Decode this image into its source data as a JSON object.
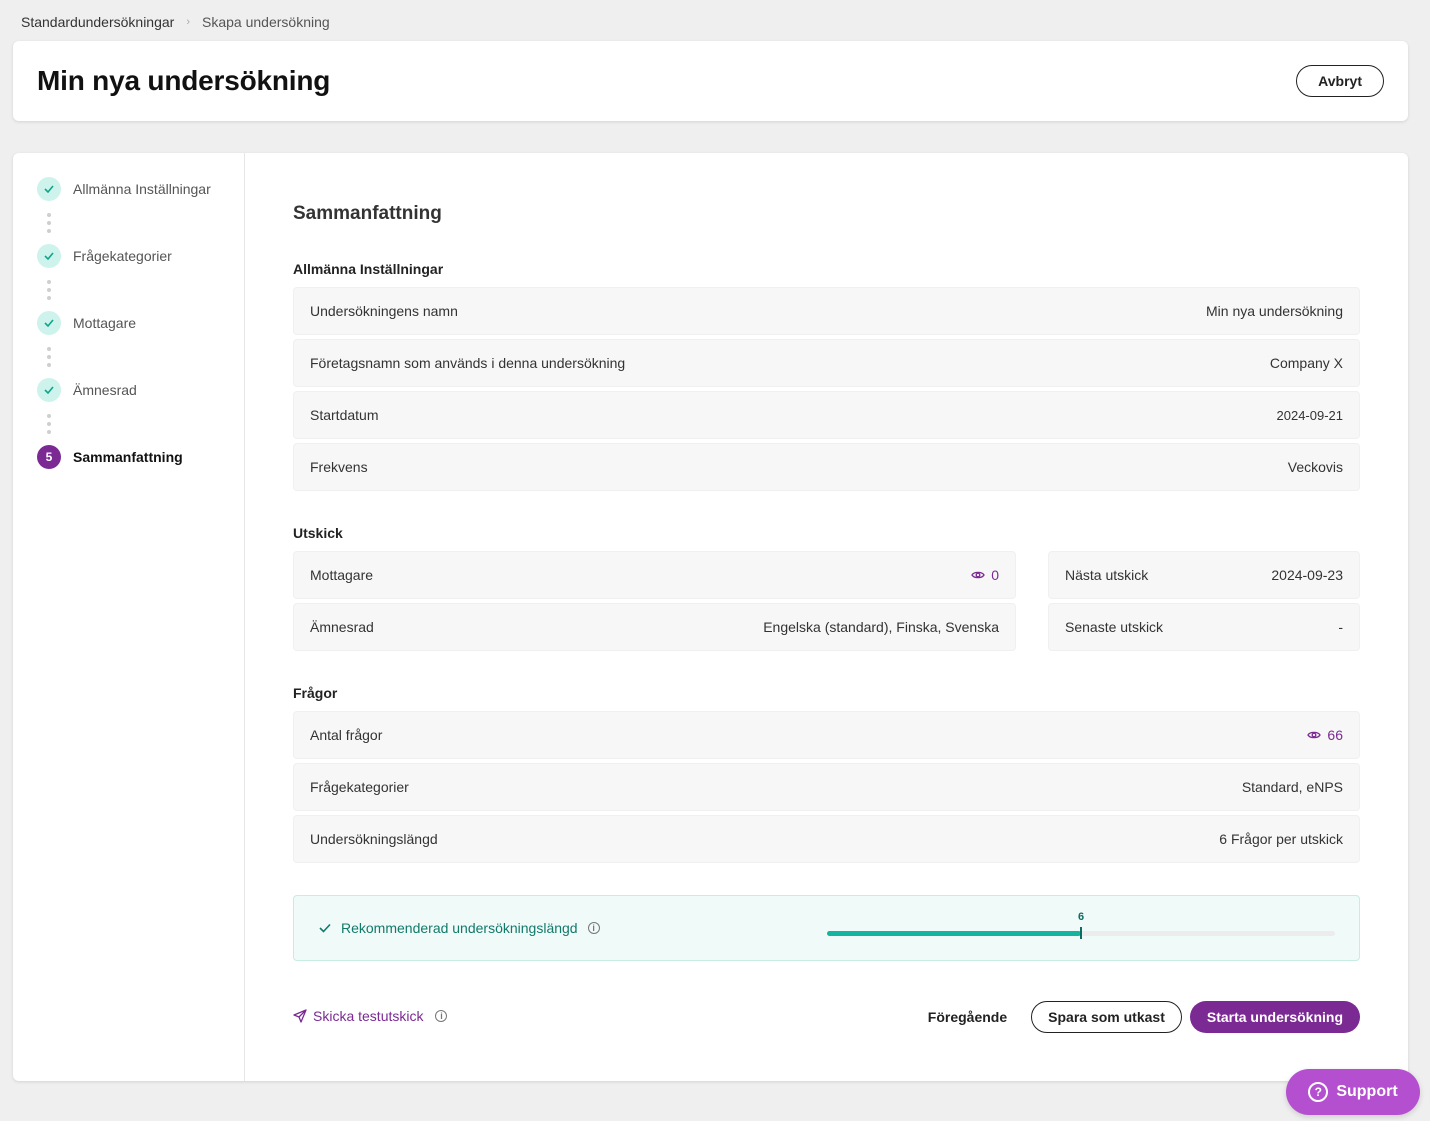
{
  "breadcrumb": {
    "items": [
      "Standardundersökningar",
      "Skapa undersökning"
    ]
  },
  "header": {
    "title": "Min nya undersökning",
    "cancel_label": "Avbryt"
  },
  "sidebar": {
    "steps": [
      {
        "label": "Allmänna Inställningar",
        "state": "done"
      },
      {
        "label": "Frågekategorier",
        "state": "done"
      },
      {
        "label": "Mottagare",
        "state": "done"
      },
      {
        "label": "Ämnesrad",
        "state": "done"
      },
      {
        "label": "Sammanfattning",
        "state": "active",
        "number": "5"
      }
    ]
  },
  "summary": {
    "title": "Sammanfattning",
    "general": {
      "title": "Allmänna Inställningar",
      "rows": [
        {
          "label": "Undersökningens namn",
          "value": "Min nya undersökning"
        },
        {
          "label": "Företagsnamn som används i denna undersökning",
          "value": "Company X"
        },
        {
          "label": "Startdatum",
          "value": "2024-09-21"
        },
        {
          "label": "Frekvens",
          "value": "Veckovis"
        }
      ]
    },
    "dispatch": {
      "title": "Utskick",
      "left_rows": [
        {
          "label": "Mottagare",
          "value": "0"
        },
        {
          "label": "Ämnesrad",
          "value": "Engelska (standard), Finska, Svenska"
        }
      ],
      "right_rows": [
        {
          "label": "Nästa utskick",
          "value": "2024-09-23"
        },
        {
          "label": "Senaste utskick",
          "value": "-"
        }
      ]
    },
    "questions": {
      "title": "Frågor",
      "rows": [
        {
          "label": "Antal frågor",
          "value": "66"
        },
        {
          "label": "Frågekategorier",
          "value": "Standard, eNPS"
        },
        {
          "label": "Undersökningslängd",
          "value": "6 Frågor per utskick"
        }
      ]
    }
  },
  "recommendation": {
    "label": "Rekommenderad undersökningslängd",
    "value": "6",
    "fill_fraction": 0.5
  },
  "footer": {
    "test_label": "Skicka testutskick",
    "previous_label": "Föregående",
    "draft_label": "Spara som utkast",
    "start_label": "Starta undersökning"
  },
  "support": {
    "label": "Support"
  },
  "colors": {
    "brand": "#7b2a93",
    "teal": "#14b4a0",
    "support": "#b44fd0"
  }
}
